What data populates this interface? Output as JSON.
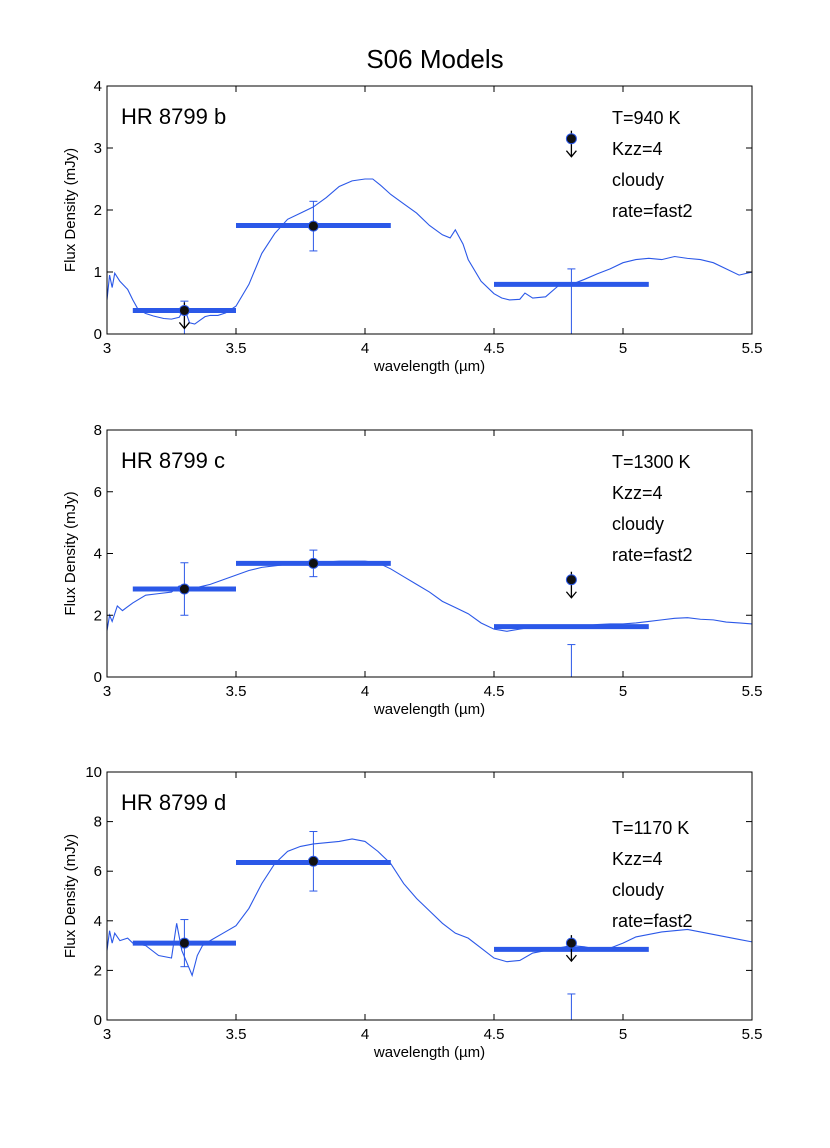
{
  "figure": {
    "title": "S06 Models"
  },
  "colors": {
    "model": "#2b58e8",
    "photometry": "#2b58e8",
    "point_fill": "#111111",
    "point_edge": "#2b58e8",
    "axis": "#000000"
  },
  "chart_data": [
    {
      "type": "line",
      "title": "HR 8799 b",
      "xlabel": "wavelength (µm)",
      "ylabel": "Flux Density (mJy)",
      "xlim": [
        3,
        5.5
      ],
      "ylim": [
        0,
        4
      ],
      "xticks": [
        3,
        3.5,
        4,
        4.5,
        5,
        5.5
      ],
      "yticks": [
        0,
        1,
        2,
        3,
        4
      ],
      "grid": false,
      "annotations": [
        "T=940 K",
        "Kzz=4",
        "cloudy",
        "rate=fast2"
      ],
      "model": {
        "x": [
          3.0,
          3.01,
          3.02,
          3.03,
          3.05,
          3.08,
          3.1,
          3.12,
          3.15,
          3.18,
          3.2,
          3.22,
          3.25,
          3.28,
          3.3,
          3.32,
          3.34,
          3.36,
          3.38,
          3.4,
          3.43,
          3.46,
          3.5,
          3.55,
          3.6,
          3.65,
          3.7,
          3.75,
          3.8,
          3.85,
          3.9,
          3.95,
          4.0,
          4.03,
          4.06,
          4.1,
          4.15,
          4.2,
          4.25,
          4.3,
          4.33,
          4.35,
          4.38,
          4.4,
          4.45,
          4.5,
          4.53,
          4.56,
          4.6,
          4.62,
          4.65,
          4.7,
          4.75,
          4.8,
          4.85,
          4.9,
          4.95,
          5.0,
          5.05,
          5.1,
          5.15,
          5.2,
          5.25,
          5.3,
          5.35,
          5.4,
          5.45,
          5.5
        ],
        "y": [
          0.55,
          0.95,
          0.75,
          0.98,
          0.85,
          0.72,
          0.55,
          0.4,
          0.33,
          0.29,
          0.27,
          0.25,
          0.24,
          0.27,
          0.42,
          0.18,
          0.16,
          0.22,
          0.28,
          0.3,
          0.3,
          0.34,
          0.45,
          0.8,
          1.3,
          1.62,
          1.85,
          1.95,
          2.05,
          2.2,
          2.38,
          2.47,
          2.5,
          2.5,
          2.4,
          2.25,
          2.1,
          1.95,
          1.75,
          1.6,
          1.55,
          1.68,
          1.45,
          1.2,
          0.85,
          0.65,
          0.58,
          0.55,
          0.56,
          0.66,
          0.58,
          0.6,
          0.78,
          0.8,
          0.88,
          0.97,
          1.05,
          1.15,
          1.2,
          1.22,
          1.2,
          1.25,
          1.22,
          1.2,
          1.15,
          1.05,
          0.95,
          1.0
        ]
      },
      "bands": [
        {
          "x_start": 3.1,
          "x_end": 3.5,
          "model_flux": 0.38
        },
        {
          "x_start": 3.5,
          "x_end": 4.1,
          "model_flux": 1.75
        },
        {
          "x_start": 4.5,
          "x_end": 5.1,
          "model_flux": 0.8
        }
      ],
      "measurements": [
        {
          "x": 3.3,
          "y": 0.38,
          "err_low": 0.42,
          "err_high": 0.15,
          "upper_limit": true
        },
        {
          "x": 3.8,
          "y": 1.74,
          "err_low": 0.4,
          "err_high": 0.4,
          "upper_limit": false
        },
        {
          "x": 4.8,
          "y": 3.15,
          "err_low": 0.0,
          "err_high": 0.0,
          "upper_limit": true
        }
      ],
      "errorbars_extra": [
        {
          "x": 4.8,
          "y_low": 0.0,
          "y_high": 1.05
        }
      ]
    },
    {
      "type": "line",
      "title": "HR 8799 c",
      "xlabel": "wavelength (µm)",
      "ylabel": "Flux Density (mJy)",
      "xlim": [
        3,
        5.5
      ],
      "ylim": [
        0,
        8
      ],
      "xticks": [
        3,
        3.5,
        4,
        4.5,
        5,
        5.5
      ],
      "yticks": [
        0,
        2,
        4,
        6,
        8
      ],
      "grid": false,
      "annotations": [
        "T=1300 K",
        "Kzz=4",
        "cloudy",
        "rate=fast2"
      ],
      "model": {
        "x": [
          3.0,
          3.01,
          3.02,
          3.04,
          3.06,
          3.1,
          3.15,
          3.2,
          3.25,
          3.28,
          3.3,
          3.32,
          3.35,
          3.4,
          3.45,
          3.5,
          3.55,
          3.6,
          3.65,
          3.7,
          3.8,
          3.9,
          4.0,
          4.05,
          4.1,
          4.15,
          4.2,
          4.25,
          4.3,
          4.35,
          4.4,
          4.45,
          4.5,
          4.55,
          4.6,
          4.65,
          4.7,
          4.75,
          4.8,
          4.85,
          4.9,
          4.95,
          5.0,
          5.05,
          5.1,
          5.15,
          5.2,
          5.25,
          5.3,
          5.35,
          5.4,
          5.45,
          5.5
        ],
        "y": [
          1.5,
          2.0,
          1.8,
          2.3,
          2.15,
          2.4,
          2.65,
          2.7,
          2.75,
          2.95,
          2.7,
          2.85,
          2.9,
          3.0,
          3.15,
          3.3,
          3.45,
          3.55,
          3.6,
          3.65,
          3.7,
          3.75,
          3.75,
          3.7,
          3.5,
          3.25,
          3.0,
          2.75,
          2.45,
          2.25,
          2.05,
          1.75,
          1.55,
          1.48,
          1.55,
          1.62,
          1.68,
          1.65,
          1.6,
          1.65,
          1.7,
          1.72,
          1.72,
          1.75,
          1.8,
          1.85,
          1.9,
          1.92,
          1.87,
          1.85,
          1.78,
          1.75,
          1.72
        ]
      },
      "bands": [
        {
          "x_start": 3.1,
          "x_end": 3.5,
          "model_flux": 2.85
        },
        {
          "x_start": 3.5,
          "x_end": 4.1,
          "model_flux": 3.68
        },
        {
          "x_start": 4.5,
          "x_end": 5.1,
          "model_flux": 1.63
        }
      ],
      "measurements": [
        {
          "x": 3.3,
          "y": 2.85,
          "err_low": 0.85,
          "err_high": 0.85,
          "upper_limit": false
        },
        {
          "x": 3.8,
          "y": 3.68,
          "err_low": 0.43,
          "err_high": 0.43,
          "upper_limit": false
        },
        {
          "x": 4.8,
          "y": 3.15,
          "err_low": 0.0,
          "err_high": 0.0,
          "upper_limit": true
        }
      ],
      "errorbars_extra": [
        {
          "x": 4.8,
          "y_low": 0.0,
          "y_high": 1.05
        }
      ]
    },
    {
      "type": "line",
      "title": "HR 8799 d",
      "xlabel": "wavelength (µm)",
      "ylabel": "Flux Density (mJy)",
      "xlim": [
        3,
        5.5
      ],
      "ylim": [
        0,
        10
      ],
      "xticks": [
        3,
        3.5,
        4,
        4.5,
        5,
        5.5
      ],
      "yticks": [
        0,
        2,
        4,
        6,
        8,
        10
      ],
      "grid": false,
      "annotations": [
        "T=1170 K",
        "Kzz=4",
        "cloudy",
        "rate=fast2"
      ],
      "model": {
        "x": [
          3.0,
          3.01,
          3.02,
          3.03,
          3.05,
          3.08,
          3.1,
          3.15,
          3.2,
          3.25,
          3.27,
          3.29,
          3.31,
          3.33,
          3.35,
          3.37,
          3.4,
          3.45,
          3.5,
          3.55,
          3.6,
          3.65,
          3.7,
          3.75,
          3.8,
          3.85,
          3.9,
          3.95,
          4.0,
          4.05,
          4.1,
          4.15,
          4.2,
          4.25,
          4.3,
          4.35,
          4.4,
          4.45,
          4.5,
          4.55,
          4.6,
          4.65,
          4.7,
          4.75,
          4.8,
          4.85,
          4.9,
          4.95,
          5.0,
          5.05,
          5.1,
          5.15,
          5.2,
          5.25,
          5.3,
          5.35,
          5.4,
          5.45,
          5.5
        ],
        "y": [
          2.8,
          3.6,
          3.1,
          3.5,
          3.2,
          3.3,
          3.1,
          3.0,
          2.6,
          2.5,
          3.9,
          2.8,
          2.3,
          1.8,
          2.6,
          3.0,
          3.2,
          3.5,
          3.8,
          4.5,
          5.5,
          6.3,
          6.8,
          7.0,
          7.1,
          7.15,
          7.2,
          7.3,
          7.2,
          6.8,
          6.3,
          5.5,
          4.9,
          4.4,
          3.9,
          3.5,
          3.3,
          2.9,
          2.5,
          2.35,
          2.4,
          2.7,
          2.8,
          2.9,
          3.0,
          2.95,
          2.85,
          2.9,
          3.1,
          3.35,
          3.45,
          3.55,
          3.6,
          3.65,
          3.55,
          3.45,
          3.35,
          3.25,
          3.15
        ]
      },
      "bands": [
        {
          "x_start": 3.1,
          "x_end": 3.5,
          "model_flux": 3.1
        },
        {
          "x_start": 3.5,
          "x_end": 4.1,
          "model_flux": 6.35
        },
        {
          "x_start": 4.5,
          "x_end": 5.1,
          "model_flux": 2.85
        }
      ],
      "measurements": [
        {
          "x": 3.3,
          "y": 3.1,
          "err_low": 0.95,
          "err_high": 0.95,
          "upper_limit": false
        },
        {
          "x": 3.8,
          "y": 6.4,
          "err_low": 1.2,
          "err_high": 1.2,
          "upper_limit": false
        },
        {
          "x": 4.8,
          "y": 3.1,
          "err_low": 0.0,
          "err_high": 0.0,
          "upper_limit": true
        }
      ],
      "errorbars_extra": [
        {
          "x": 4.8,
          "y_low": 0.0,
          "y_high": 1.05
        }
      ]
    }
  ]
}
